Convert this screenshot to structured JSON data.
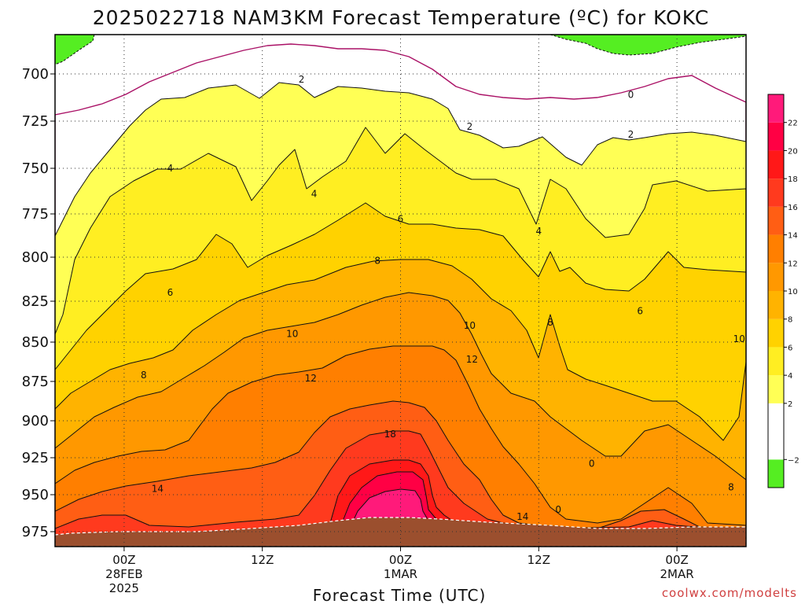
{
  "title": "2025022718 NAM3KM Forecast Temperature (ºC) for KOKC",
  "xlabel": "Forecast Time (UTC)",
  "credit": "coolwx.com/modelts",
  "chart_data": {
    "type": "heatmap",
    "description_units": "temperature degC",
    "y_axis": {
      "ticks": [
        700,
        725,
        750,
        775,
        800,
        825,
        850,
        875,
        900,
        925,
        950,
        975
      ],
      "ylim_pressure_hPa": [
        680,
        985
      ]
    },
    "x_axis": {
      "ticks": [
        {
          "hour": 6,
          "lines": [
            "00Z",
            "28FEB",
            "2025"
          ]
        },
        {
          "hour": 18,
          "lines": [
            "12Z"
          ]
        },
        {
          "hour": 30,
          "lines": [
            "00Z",
            "1MAR"
          ]
        },
        {
          "hour": 42,
          "lines": [
            "12Z"
          ]
        },
        {
          "hour": 54,
          "lines": [
            "00Z",
            "2MAR"
          ]
        }
      ],
      "xlim_forecast_hour": [
        0,
        60
      ]
    },
    "colorbar": {
      "ticks": [
        -2,
        2,
        4,
        6,
        8,
        10,
        12,
        14,
        16,
        18,
        20,
        22
      ],
      "bins": [
        {
          "from": -4,
          "to": -2,
          "color": "#55ee22"
        },
        {
          "from": -2,
          "to": 0,
          "color": "#ffffff"
        },
        {
          "from": 0,
          "to": 2,
          "color": "#ffffff"
        },
        {
          "from": 2,
          "to": 4,
          "color": "#ffff55"
        },
        {
          "from": 4,
          "to": 6,
          "color": "#ffee22"
        },
        {
          "from": 6,
          "to": 8,
          "color": "#ffd200"
        },
        {
          "from": 8,
          "to": 10,
          "color": "#ffb300"
        },
        {
          "from": 10,
          "to": 12,
          "color": "#ff9800"
        },
        {
          "from": 12,
          "to": 14,
          "color": "#ff7f00"
        },
        {
          "from": 14,
          "to": 16,
          "color": "#ff5e14"
        },
        {
          "from": 16,
          "to": 18,
          "color": "#ff3a1e"
        },
        {
          "from": 18,
          "to": 20,
          "color": "#ff1818"
        },
        {
          "from": 20,
          "to": 22,
          "color": "#ff0044"
        },
        {
          "from": 22,
          "to": 24,
          "color": "#ff1a7a"
        }
      ]
    },
    "ground_color": "#9b4f2e",
    "contour_labels": [
      {
        "value": "2",
        "hour": 21.4,
        "p": 703
      },
      {
        "value": "2",
        "hour": 36.0,
        "p": 728
      },
      {
        "value": "2",
        "hour": 50.0,
        "p": 732
      },
      {
        "value": "0",
        "hour": 50.0,
        "p": 711
      },
      {
        "value": "4",
        "hour": 10.0,
        "p": 750
      },
      {
        "value": "4",
        "hour": 22.5,
        "p": 764
      },
      {
        "value": "4",
        "hour": 42.0,
        "p": 785
      },
      {
        "value": "6",
        "hour": 10.0,
        "p": 820
      },
      {
        "value": "6",
        "hour": 30.0,
        "p": 778
      },
      {
        "value": "6",
        "hour": 50.8,
        "p": 831
      },
      {
        "value": "8",
        "hour": 28.0,
        "p": 802
      },
      {
        "value": "8",
        "hour": 7.7,
        "p": 871
      },
      {
        "value": "8",
        "hour": 43.0,
        "p": 838
      },
      {
        "value": "8",
        "hour": 58.7,
        "p": 945
      },
      {
        "value": "10",
        "hour": 20.6,
        "p": 845
      },
      {
        "value": "10",
        "hour": 36.0,
        "p": 840
      },
      {
        "value": "10",
        "hour": 59.4,
        "p": 848
      },
      {
        "value": "12",
        "hour": 22.2,
        "p": 873
      },
      {
        "value": "12",
        "hour": 36.2,
        "p": 861
      },
      {
        "value": "14",
        "hour": 8.9,
        "p": 946
      },
      {
        "value": "14",
        "hour": 40.6,
        "p": 965
      },
      {
        "value": "18",
        "hour": 29.1,
        "p": 909
      },
      {
        "value": "0",
        "hour": 46.6,
        "p": 929
      },
      {
        "value": "0",
        "hour": 43.7,
        "p": 960
      }
    ]
  }
}
